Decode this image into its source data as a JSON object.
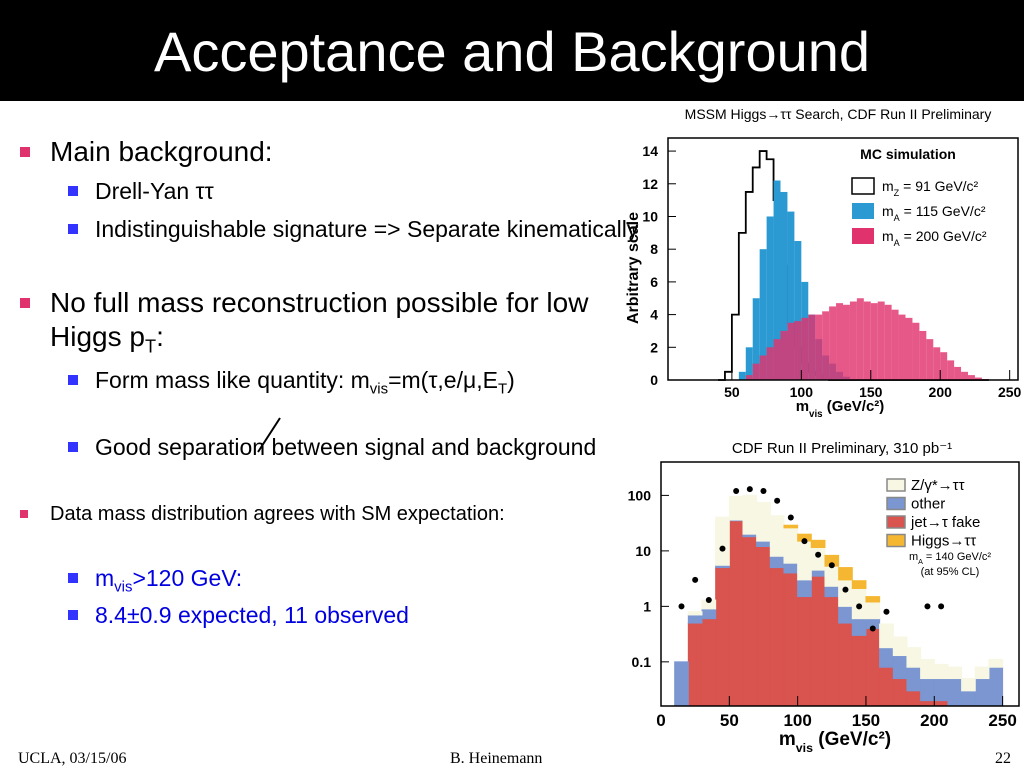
{
  "slide": {
    "title": "Acceptance and Background",
    "bullets": [
      {
        "level": 1,
        "runs": [
          "Main background:"
        ]
      },
      {
        "level": 2,
        "runs": [
          "Drell-Yan ττ"
        ]
      },
      {
        "level": 2,
        "runs": [
          "Indistinguishable signature => Separate kinematically"
        ]
      },
      {
        "level": 1,
        "runs": [
          "No full mass reconstruction possible for low Higgs p",
          "T",
          ":"
        ]
      },
      {
        "level": 2,
        "runs": [
          "Form mass like quantity: m",
          "vis",
          "=m(τ,e/μ,E",
          "T",
          ")"
        ]
      },
      {
        "level": 2,
        "runs": [
          "Good separation between signal and background"
        ]
      },
      {
        "level": 1,
        "runs": [
          "Data mass distribution agrees with SM expectation:"
        ]
      },
      {
        "level": 2,
        "color": "#0000e0",
        "runs": [
          "m",
          "vis",
          ">120 GeV:"
        ]
      },
      {
        "level": 2,
        "color": "#0000e0",
        "runs": [
          "8.4±0.9 expected, 11 observed"
        ]
      }
    ],
    "footer": {
      "left": "UCLA, 03/15/06",
      "center": "B. Heinemann",
      "right": "22"
    }
  },
  "chart_data": [
    {
      "type": "histogram",
      "title": "MSSM Higgs→ττ Search, CDF Run II Preliminary",
      "xlabel": [
        "m",
        "vis",
        " (GeV/c²)"
      ],
      "ylabel": "Arbitrary scale",
      "legend_title": "MC simulation",
      "xlim": [
        4,
        256
      ],
      "ylim": [
        0,
        14.8
      ],
      "xticks": [
        50,
        100,
        150,
        200,
        250
      ],
      "yticks": [
        0,
        2,
        4,
        6,
        8,
        10,
        12,
        14
      ],
      "bins": [
        40,
        45,
        50,
        55,
        60,
        65,
        70,
        75,
        80,
        85,
        90,
        95,
        100,
        105,
        110,
        115,
        120,
        125,
        130,
        135,
        140,
        145,
        150,
        155,
        160,
        165,
        170,
        175,
        180,
        185,
        190,
        195,
        200,
        205,
        210,
        215,
        220,
        225,
        230,
        235
      ],
      "series": [
        {
          "name": [
            "m",
            "Z",
            " = 91 GeV/c²"
          ],
          "color": "#000000",
          "filled": false,
          "values": [
            0,
            0.5,
            4,
            9,
            11.5,
            13,
            14,
            13.5,
            11,
            7,
            3.5,
            2,
            1,
            0.5,
            0.3,
            0.1,
            0,
            0,
            0,
            0,
            0,
            0,
            0,
            0,
            0,
            0,
            0,
            0,
            0,
            0,
            0,
            0,
            0,
            0,
            0,
            0,
            0,
            0,
            0
          ]
        },
        {
          "name": [
            "m",
            "A",
            " = 115 GeV/c²"
          ],
          "color": "#2b9ad3",
          "filled": true,
          "values": [
            0,
            0,
            0,
            0.5,
            2,
            5,
            8,
            10,
            12.2,
            11.5,
            10.3,
            8.5,
            6,
            4,
            2.5,
            1.5,
            1,
            0.5,
            0.2,
            0,
            0,
            0,
            0,
            0,
            0,
            0,
            0,
            0,
            0,
            0,
            0,
            0,
            0,
            0,
            0,
            0,
            0,
            0,
            0
          ]
        },
        {
          "name": [
            "m",
            "A",
            " = 200 GeV/c²"
          ],
          "color": "#e0336e",
          "filled": true,
          "values": [
            0,
            0,
            0,
            0,
            0.3,
            1,
            1.5,
            2,
            2.5,
            3,
            3.5,
            3.6,
            3.8,
            4,
            4,
            4.2,
            4.5,
            4.7,
            4.6,
            4.8,
            5,
            4.8,
            4.7,
            4.8,
            4.6,
            4.3,
            4,
            3.8,
            3.5,
            3,
            2.5,
            2,
            1.7,
            1.2,
            0.8,
            0.5,
            0.3,
            0.15,
            0.05
          ]
        }
      ]
    },
    {
      "type": "histogram",
      "stacked": true,
      "log_y": true,
      "title": "CDF Run II Preliminary, 310 pb⁻¹",
      "xlabel": [
        "m",
        "vis",
        " (GeV/c²)"
      ],
      "annotations": [
        [
          "m",
          "A",
          " = 140 GeV/c²"
        ],
        [
          "(at 95% CL)"
        ]
      ],
      "xlim": [
        0,
        262
      ],
      "ylim": [
        0.016,
        400
      ],
      "xticks": [
        0,
        50,
        100,
        150,
        200,
        250
      ],
      "yticks": [
        0.1,
        1,
        10,
        100
      ],
      "bins": [
        10,
        20,
        30,
        40,
        50,
        60,
        70,
        80,
        90,
        100,
        110,
        120,
        130,
        140,
        150,
        160,
        170,
        180,
        190,
        200,
        210,
        220,
        230,
        240,
        250
      ],
      "legend_order": [
        2,
        1,
        0,
        3
      ],
      "series": [
        {
          "name": [
            "jet→τ fake"
          ],
          "color": "#d9534f",
          "values": [
            0,
            0.5,
            0.6,
            5,
            35,
            18,
            12,
            5,
            4,
            1.5,
            3.5,
            1.5,
            0.5,
            0.3,
            0.4,
            0.08,
            0.05,
            0.03,
            0.02,
            0.02,
            0,
            0,
            0,
            0
          ]
        },
        {
          "name": [
            "other"
          ],
          "color": "#7b96d1",
          "values": [
            0.1,
            0.2,
            0.3,
            0.5,
            1,
            2,
            3,
            3,
            2,
            1.5,
            1,
            0.8,
            0.5,
            0.3,
            0.2,
            0.1,
            0.08,
            0.05,
            0.03,
            0.03,
            0.05,
            0.03,
            0.05,
            0.08
          ]
        },
        {
          "name": [
            "Z/γ*→ττ"
          ],
          "color": "#f7f7e3",
          "values": [
            0,
            0.1,
            0.4,
            35,
            60,
            80,
            60,
            35,
            20,
            12,
            7,
            3,
            2,
            1.5,
            0.6,
            0.3,
            0.15,
            0.1,
            0.06,
            0.04,
            0.03,
            0.02,
            0.03,
            0.03
          ]
        },
        {
          "name": [
            "Higgs→ττ"
          ],
          "color": "#f5b731",
          "values": [
            0,
            0,
            0,
            0,
            0,
            0,
            0,
            0,
            3,
            5,
            4,
            3,
            2,
            0.8,
            0.3,
            0,
            0,
            0,
            0,
            0,
            0,
            0,
            0,
            0
          ]
        }
      ],
      "data_points": {
        "color": "#000000",
        "x": [
          15,
          25,
          35,
          45,
          55,
          65,
          75,
          85,
          95,
          105,
          115,
          125,
          135,
          145,
          155,
          165,
          195,
          205
        ],
        "values": [
          1,
          3,
          1.3,
          11,
          120,
          130,
          120,
          80,
          40,
          15,
          8.5,
          5.5,
          2,
          1,
          0.4,
          0.8,
          1,
          1
        ]
      }
    }
  ]
}
